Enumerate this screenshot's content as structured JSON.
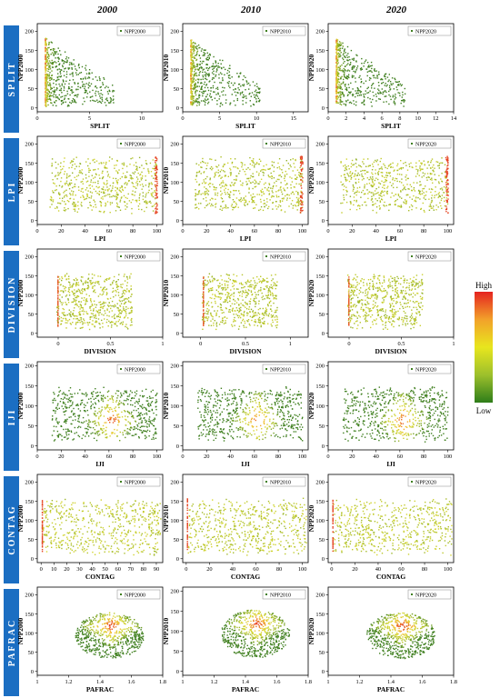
{
  "columns": [
    "2000",
    "2010",
    "2020"
  ],
  "colorbar": {
    "high_label": "High",
    "low_label": "Low",
    "colors": [
      "#2e7d1a",
      "#9dc02c",
      "#e8e61e",
      "#f2a12a",
      "#e52320"
    ]
  },
  "colors": {
    "side_label_bg": "#1b6ec2",
    "side_label_text": "#ffffff",
    "point_low": "#3f7f1f",
    "point_mid": "#d9d832",
    "point_high": "#e8282a"
  },
  "chart_data": [
    {
      "type": "scatter",
      "row_label": "SPLIT",
      "xlabel": "SPLIT",
      "panels": [
        {
          "ylabel": "NPP2000",
          "legend": "NPP2000",
          "xlim": [
            0,
            12
          ],
          "xticks": [
            0,
            5,
            10
          ],
          "ylim": [
            -10,
            220
          ],
          "yticks": [
            0,
            50,
            100,
            150,
            200
          ]
        },
        {
          "ylabel": "NPP2010",
          "legend": "NPP2010",
          "xlim": [
            0,
            17
          ],
          "xticks": [
            0,
            5,
            10,
            15
          ],
          "ylim": [
            -10,
            220
          ],
          "yticks": [
            0,
            50,
            100,
            150,
            200
          ]
        },
        {
          "ylabel": "NPP2020",
          "legend": "NPP2020",
          "xlim": [
            0,
            14
          ],
          "xticks": [
            0,
            2,
            4,
            6,
            8,
            10,
            12,
            14
          ],
          "ylim": [
            -10,
            220
          ],
          "yticks": [
            0,
            50,
            100,
            150,
            200
          ]
        }
      ]
    },
    {
      "type": "scatter",
      "row_label": "LPI",
      "xlabel": "LPI",
      "panels": [
        {
          "ylabel": "NPP2000",
          "legend": "NPP2000",
          "xlim": [
            0,
            105
          ],
          "xticks": [
            0,
            20,
            40,
            60,
            80,
            100
          ],
          "ylim": [
            -10,
            220
          ],
          "yticks": [
            0,
            50,
            100,
            150,
            200
          ]
        },
        {
          "ylabel": "NPP2010",
          "legend": "NPP2010",
          "xlim": [
            0,
            105
          ],
          "xticks": [
            0,
            20,
            40,
            60,
            80,
            100
          ],
          "ylim": [
            -10,
            220
          ],
          "yticks": [
            0,
            50,
            100,
            150,
            200
          ]
        },
        {
          "ylabel": "NPP2020",
          "legend": "NPP2020",
          "xlim": [
            0,
            105
          ],
          "xticks": [
            0,
            20,
            40,
            60,
            80,
            100
          ],
          "ylim": [
            -10,
            220
          ],
          "yticks": [
            0,
            50,
            100,
            150,
            200
          ]
        }
      ]
    },
    {
      "type": "scatter",
      "row_label": "DIVISION",
      "xlabel": "DIVISION",
      "panels": [
        {
          "ylabel": "NPP2000",
          "legend": "NPP2000",
          "xlim": [
            -0.2,
            1.0
          ],
          "xticks": [
            0.0,
            0.5,
            1.0
          ],
          "ylim": [
            -10,
            220
          ],
          "yticks": [
            0,
            50,
            100,
            150,
            200
          ]
        },
        {
          "ylabel": "NPP2010",
          "legend": "NPP2010",
          "xlim": [
            -0.2,
            1.2
          ],
          "xticks": [
            0.0,
            0.5,
            1.0
          ],
          "ylim": [
            -10,
            220
          ],
          "yticks": [
            0,
            50,
            100,
            150,
            200
          ]
        },
        {
          "ylabel": "NPP2020",
          "legend": "NPP2020",
          "xlim": [
            -0.2,
            1.0
          ],
          "xticks": [
            0.0,
            0.5,
            1.0
          ],
          "ylim": [
            -10,
            220
          ],
          "yticks": [
            0,
            50,
            100,
            150,
            200
          ]
        }
      ]
    },
    {
      "type": "scatter",
      "row_label": "IJI",
      "xlabel": "IJI",
      "panels": [
        {
          "ylabel": "NPP2000",
          "legend": "NPP2000",
          "xlim": [
            0,
            105
          ],
          "xticks": [
            0,
            20,
            40,
            60,
            80,
            100
          ],
          "ylim": [
            -10,
            210
          ],
          "yticks": [
            0,
            50,
            100,
            150,
            200
          ]
        },
        {
          "ylabel": "NPP2010",
          "legend": "NPP2010",
          "xlim": [
            0,
            105
          ],
          "xticks": [
            0,
            20,
            40,
            60,
            80,
            100
          ],
          "ylim": [
            -10,
            210
          ],
          "yticks": [
            0,
            50,
            100,
            150,
            200
          ]
        },
        {
          "ylabel": "NPP2020",
          "legend": "NPP2020",
          "xlim": [
            0,
            105
          ],
          "xticks": [
            0,
            20,
            40,
            60,
            80,
            100
          ],
          "ylim": [
            -10,
            210
          ],
          "yticks": [
            0,
            50,
            100,
            150,
            200
          ]
        }
      ]
    },
    {
      "type": "scatter",
      "row_label": "CONTAG",
      "xlabel": "CONTAG",
      "panels": [
        {
          "ylabel": "NPP2000",
          "legend": "NPP2000",
          "xlim": [
            -3,
            95
          ],
          "xticks": [
            0,
            10,
            20,
            30,
            40,
            50,
            60,
            70,
            80,
            90
          ],
          "ylim": [
            -10,
            220
          ],
          "yticks": [
            0,
            50,
            100,
            150,
            200
          ]
        },
        {
          "ylabel": "NPP2010",
          "legend": "NPP2010",
          "xlim": [
            -3,
            105
          ],
          "xticks": [
            0,
            20,
            40,
            60,
            80,
            100
          ],
          "ylim": [
            -10,
            220
          ],
          "yticks": [
            0,
            50,
            100,
            150,
            200
          ]
        },
        {
          "ylabel": "NPP2020",
          "legend": "NPP2020",
          "xlim": [
            -3,
            105
          ],
          "xticks": [
            0,
            20,
            40,
            60,
            80,
            100
          ],
          "ylim": [
            -10,
            220
          ],
          "yticks": [
            0,
            50,
            100,
            150,
            200
          ]
        }
      ]
    },
    {
      "type": "scatter",
      "row_label": "PAFRAC",
      "xlabel": "PAFRAC",
      "panels": [
        {
          "ylabel": "NPP2000",
          "legend": "NPP2000",
          "xlim": [
            1.0,
            1.8
          ],
          "xticks": [
            1.0,
            1.2,
            1.4,
            1.6,
            1.8
          ],
          "ylim": [
            -10,
            220
          ],
          "yticks": [
            0,
            50,
            100,
            150,
            200
          ]
        },
        {
          "ylabel": "NPP2010",
          "legend": "NPP2010",
          "xlim": [
            1.0,
            1.8
          ],
          "xticks": [
            1.0,
            1.2,
            1.4,
            1.6,
            1.8
          ],
          "ylim": [
            -10,
            210
          ],
          "yticks": [
            0,
            50,
            100,
            150,
            200
          ]
        },
        {
          "ylabel": "NPP2020",
          "legend": "NPP2020",
          "xlim": [
            1.0,
            1.8
          ],
          "xticks": [
            1.0,
            1.2,
            1.4,
            1.6,
            1.8
          ],
          "ylim": [
            -10,
            220
          ],
          "yticks": [
            0,
            50,
            100,
            150,
            200
          ]
        }
      ]
    }
  ]
}
